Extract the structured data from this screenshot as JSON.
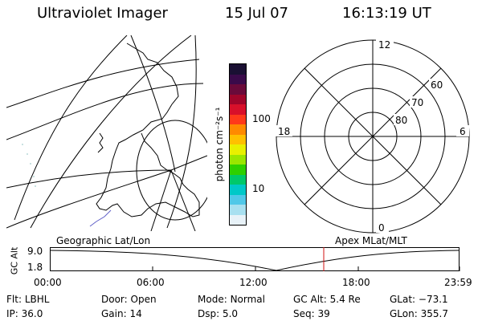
{
  "header": {
    "title": "Ultraviolet Imager",
    "date": "15 Jul 07",
    "time": "16:13:19 UT"
  },
  "colorbar": {
    "unit_label": "photon cm⁻²s⁻¹",
    "ticks": [
      "100",
      "10"
    ],
    "colors": [
      "#1a1033",
      "#3a0a4a",
      "#6a0a3a",
      "#a0052a",
      "#d8102a",
      "#ff3a1a",
      "#ff8a00",
      "#ffc000",
      "#e8f000",
      "#9ae600",
      "#2ed000",
      "#00c86a",
      "#00c8c8",
      "#50c8e8",
      "#a8e0f0",
      "#e8f2f8"
    ]
  },
  "polar": {
    "mlt_labels": {
      "top": "12",
      "left": "18",
      "right": "6",
      "bottom": "0"
    },
    "lat_labels": [
      "60",
      "70",
      "80"
    ]
  },
  "strip": {
    "left_title": "Geographic Lat/Lon",
    "right_title": "Apex MLat/MLT",
    "y_axis_label": "GC Alt",
    "y_ticks": [
      "9.0",
      "1.8"
    ],
    "x_ticks": [
      "00:00",
      "06:00",
      "12:00",
      "18:00",
      "23:59"
    ]
  },
  "footer": {
    "row1": [
      {
        "label": "Flt:",
        "value": "LBHL"
      },
      {
        "label": "Door:",
        "value": "Open"
      },
      {
        "label": "Mode:",
        "value": "Normal"
      },
      {
        "label": "GC Alt:",
        "value": "5.4 Re"
      },
      {
        "label": "GLat:",
        "value": "−73.1"
      }
    ],
    "row2": [
      {
        "label": "IP:",
        "value": "36.0"
      },
      {
        "label": "Gain:",
        "value": "14"
      },
      {
        "label": "Dsp:",
        "value": "5.0"
      },
      {
        "label": "Seq:",
        "value": "39"
      },
      {
        "label": "GLon:",
        "value": "355.7"
      }
    ]
  },
  "accent": {
    "marker": "#d01010",
    "coast": "#6060c8"
  }
}
